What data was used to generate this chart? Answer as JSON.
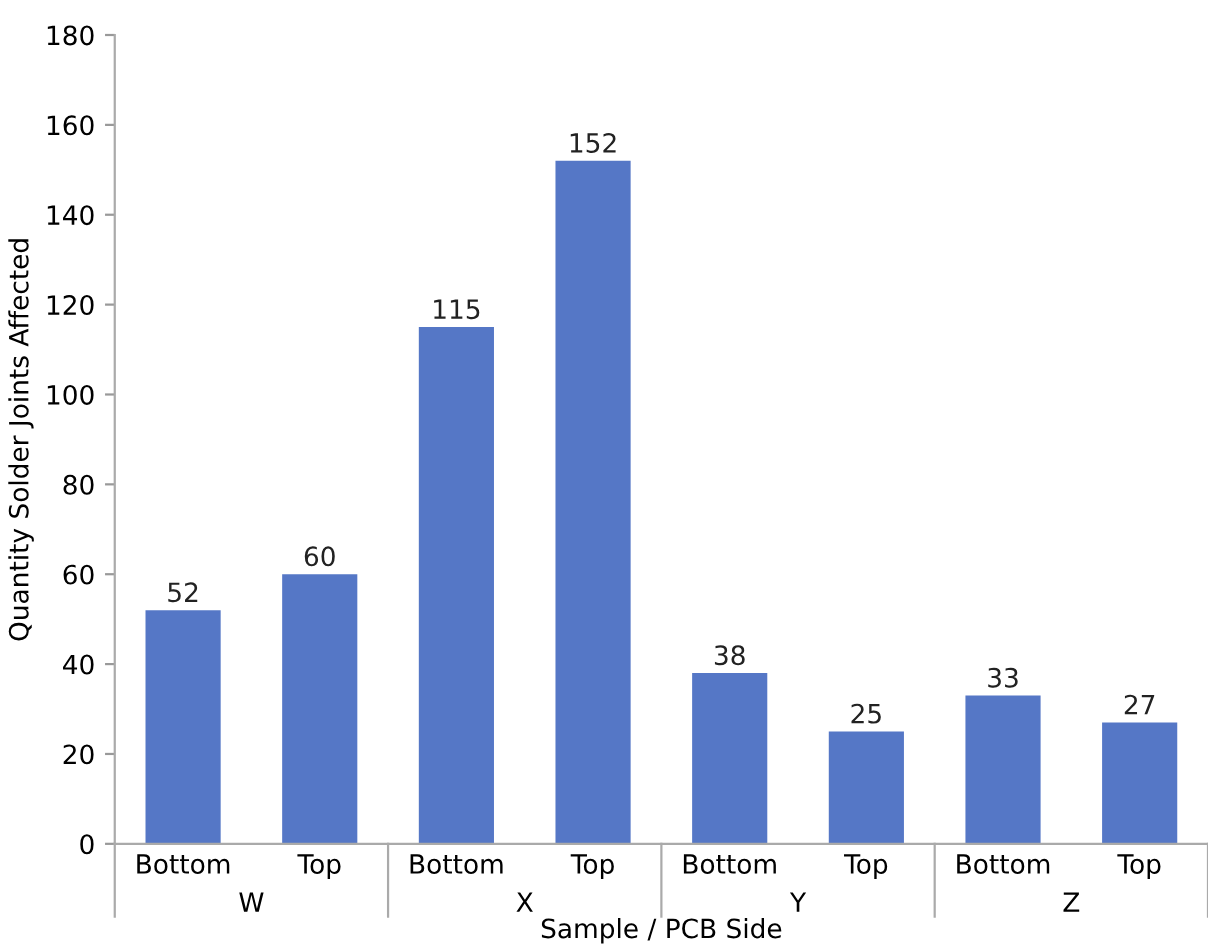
{
  "chart_data": {
    "type": "bar",
    "xlabel": "Sample / PCB Side",
    "ylabel": "Quantity Solder Joints Affected",
    "categories": [
      "Bottom",
      "Top",
      "Bottom",
      "Top",
      "Bottom",
      "Top",
      "Bottom",
      "Top"
    ],
    "values": [
      52,
      60,
      115,
      152,
      38,
      25,
      33,
      27
    ],
    "color": "#5577c6",
    "ylim": [
      0,
      180
    ],
    "yticks": [
      0,
      20,
      40,
      60,
      80,
      100,
      120,
      140,
      160,
      180
    ],
    "grid": false,
    "data_labels": true,
    "annotations": [
      "W",
      "X",
      "Y",
      "Z"
    ]
  }
}
